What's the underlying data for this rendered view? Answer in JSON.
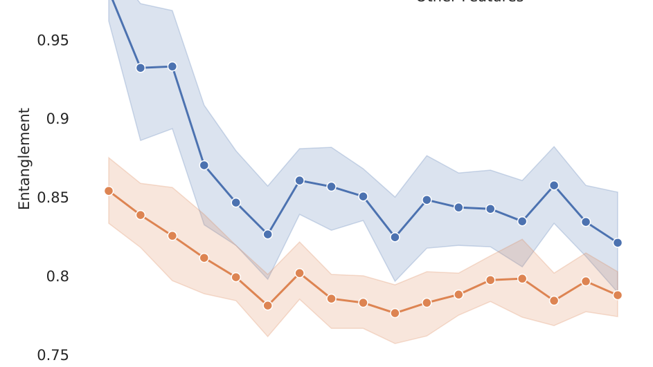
{
  "chart_data": {
    "type": "line",
    "ylabel": "Entanglement",
    "categories": [
      null,
      null,
      null,
      null,
      null,
      null,
      null,
      null,
      null,
      null,
      null,
      null,
      null,
      null,
      null,
      null,
      null
    ],
    "series": [
      {
        "color": "#4c72b0",
        "values": [
          0.982,
          0.9329,
          0.9338,
          0.8711,
          0.8474,
          0.8272,
          0.8614,
          0.8575,
          0.8513,
          0.8254,
          0.8491,
          0.8443,
          0.8434,
          0.8355,
          0.8583,
          0.8351,
          0.8219
        ],
        "upper": [
          1.0,
          0.9737,
          0.9693,
          0.9092,
          0.8803,
          0.8579,
          0.8816,
          0.8825,
          0.8689,
          0.8509,
          0.8772,
          0.8662,
          0.868,
          0.8614,
          0.8829,
          0.8583,
          0.854
        ],
        "lower": [
          0.9627,
          0.8868,
          0.8943,
          0.8333,
          0.8202,
          0.7987,
          0.8399,
          0.8298,
          0.836,
          0.7974,
          0.8184,
          0.8202,
          0.8193,
          0.8066,
          0.8342,
          0.8132,
          0.7904
        ]
      },
      {
        "name": "Other Features",
        "color": "#dd8452",
        "values": [
          0.8548,
          0.8395,
          0.8263,
          0.8123,
          0.8,
          0.782,
          0.8026,
          0.7864,
          0.7838,
          0.7772,
          0.7838,
          0.789,
          0.7982,
          0.7991,
          0.7851,
          0.7974,
          0.7886
        ],
        "upper": [
          0.8759,
          0.8596,
          0.857,
          0.8399,
          0.8202,
          0.8018,
          0.8224,
          0.8018,
          0.8009,
          0.7952,
          0.8035,
          0.8026,
          0.8136,
          0.8241,
          0.8026,
          0.8154,
          0.8035
        ],
        "lower": [
          0.8342,
          0.8189,
          0.7978,
          0.7895,
          0.7851,
          0.7623,
          0.786,
          0.7675,
          0.7675,
          0.7579,
          0.7627,
          0.7759,
          0.7846,
          0.7746,
          0.7693,
          0.7781,
          0.775
        ]
      }
    ],
    "ylim": [
      0.743,
      0.976
    ],
    "yticks": [
      0.75,
      0.8,
      0.85,
      0.9,
      0.95
    ]
  }
}
